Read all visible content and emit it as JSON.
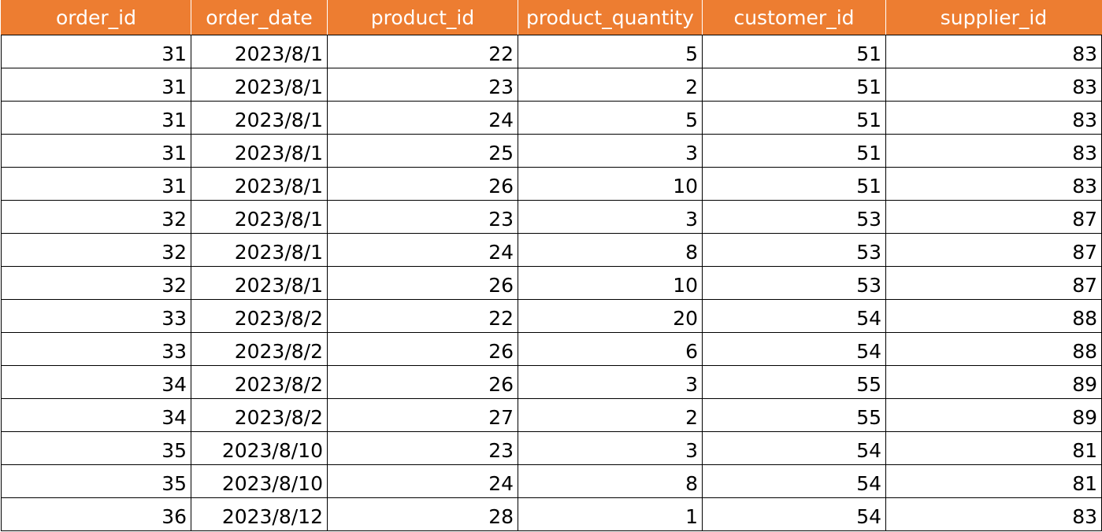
{
  "table": {
    "header_bg": "#ed7d31",
    "header_fg": "#ffffff",
    "headers": [
      "order_id",
      "order_date",
      "product_id",
      "product_quantity",
      "customer_id",
      "supplier_id"
    ],
    "rows": [
      [
        "31",
        "2023/8/1",
        "22",
        "5",
        "51",
        "83"
      ],
      [
        "31",
        "2023/8/1",
        "23",
        "2",
        "51",
        "83"
      ],
      [
        "31",
        "2023/8/1",
        "24",
        "5",
        "51",
        "83"
      ],
      [
        "31",
        "2023/8/1",
        "25",
        "3",
        "51",
        "83"
      ],
      [
        "31",
        "2023/8/1",
        "26",
        "10",
        "51",
        "83"
      ],
      [
        "32",
        "2023/8/1",
        "23",
        "3",
        "53",
        "87"
      ],
      [
        "32",
        "2023/8/1",
        "24",
        "8",
        "53",
        "87"
      ],
      [
        "32",
        "2023/8/1",
        "26",
        "10",
        "53",
        "87"
      ],
      [
        "33",
        "2023/8/2",
        "22",
        "20",
        "54",
        "88"
      ],
      [
        "33",
        "2023/8/2",
        "26",
        "6",
        "54",
        "88"
      ],
      [
        "34",
        "2023/8/2",
        "26",
        "3",
        "55",
        "89"
      ],
      [
        "34",
        "2023/8/2",
        "27",
        "2",
        "55",
        "89"
      ],
      [
        "35",
        "2023/8/10",
        "23",
        "3",
        "54",
        "81"
      ],
      [
        "35",
        "2023/8/10",
        "24",
        "8",
        "54",
        "81"
      ],
      [
        "36",
        "2023/8/12",
        "28",
        "1",
        "54",
        "83"
      ]
    ]
  }
}
